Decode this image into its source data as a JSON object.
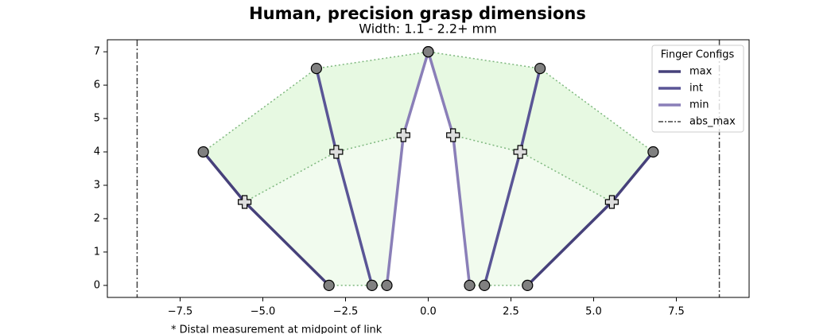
{
  "chart_data": {
    "type": "linkage",
    "title": "Human, precision grasp dimensions",
    "subtitle": "Width: 1.1 - 2.2+ mm",
    "footnote": "* Distal measurement at midpoint of link",
    "xlim": [
      -9.7,
      9.7
    ],
    "ylim": [
      -0.36,
      7.36
    ],
    "xticks": [
      {
        "value": -7.5,
        "label": "−7.5"
      },
      {
        "value": -5,
        "label": "−5.0"
      },
      {
        "value": -2.5,
        "label": "−2.5"
      },
      {
        "value": 0,
        "label": "0.0"
      },
      2.5,
      {
        "value": 5,
        "label": "5.0"
      },
      7.5
    ],
    "yticks": [
      0,
      1,
      2,
      3,
      4,
      5,
      6,
      7
    ],
    "legend_title": "Finger Configs",
    "legend_position": "upper right",
    "region_colors": [
      "#f1fbee",
      "#e7f9e2"
    ],
    "link_color": "#7fb87f",
    "joint_color": "#808080",
    "midpoint_color": "#dddddd",
    "series": [
      {
        "name": "max",
        "color": "#46417a",
        "fingers": [
          {
            "x": [
              -3,
              -5.55,
              -6.8
            ],
            "y": [
              0,
              2.5,
              4
            ]
          },
          {
            "x": [
              3,
              5.55,
              6.8
            ],
            "y": [
              0,
              2.5,
              4
            ]
          }
        ]
      },
      {
        "name": "int",
        "color": "#5a5596",
        "fingers": [
          {
            "x": [
              -1.7,
              -2.78,
              -3.38
            ],
            "y": [
              0,
              4,
              6.5
            ]
          },
          {
            "x": [
              1.7,
              2.78,
              3.38
            ],
            "y": [
              0,
              4,
              6.5
            ]
          }
        ]
      },
      {
        "name": "min",
        "color": "#8a7fb8",
        "fingers": [
          {
            "x": [
              -1.25,
              -0.75,
              0
            ],
            "y": [
              0,
              4.5,
              7
            ]
          },
          {
            "x": [
              1.25,
              0.75,
              0
            ],
            "y": [
              0,
              4.5,
              7
            ]
          }
        ]
      }
    ],
    "abs_max": {
      "name": "abs_max",
      "color": "#444444",
      "x": [
        -8.8,
        8.8
      ]
    }
  }
}
